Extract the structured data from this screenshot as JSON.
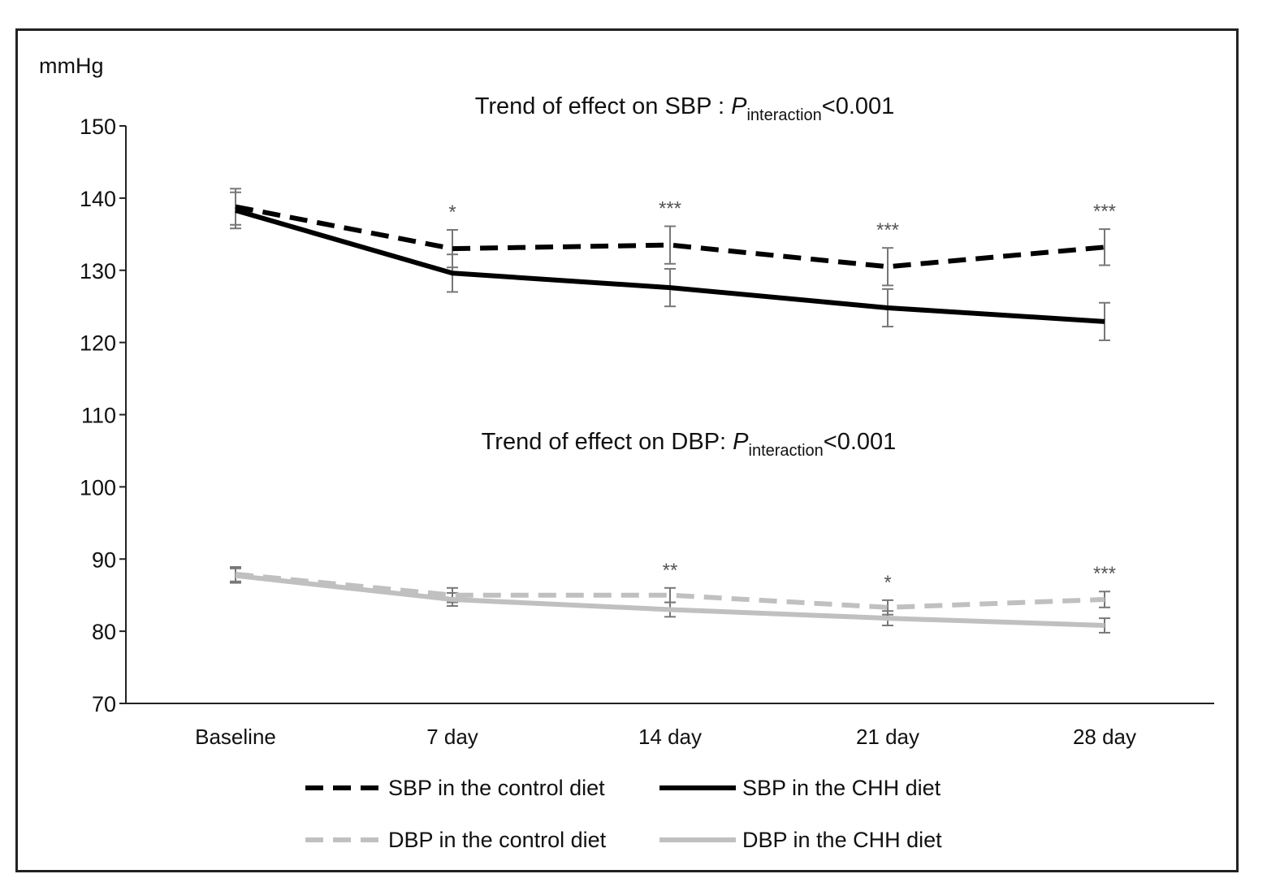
{
  "chart_data": {
    "type": "line",
    "unit_label": "mmHg",
    "categories": [
      "Baseline",
      "7 day",
      "14 day",
      "21 day",
      "28 day"
    ],
    "ylim": [
      70,
      150
    ],
    "yticks": [
      70,
      80,
      90,
      100,
      110,
      120,
      130,
      140,
      150
    ],
    "grid": false,
    "legend_placement": "bottom",
    "titles": [
      {
        "prefix": "Trend of effect on SBP : ",
        "italic": "P",
        "subscript": "interaction",
        "suffix": "<0.001"
      },
      {
        "prefix": "Trend of effect on DBP: ",
        "italic": "P",
        "subscript": "interaction",
        "suffix": "<0.001"
      }
    ],
    "series": [
      {
        "name": "SBP in the control diet",
        "color": "#000000",
        "dash": true,
        "values": [
          138.8,
          133.0,
          133.5,
          130.5,
          133.2
        ],
        "error": [
          2.5,
          2.6,
          2.6,
          2.6,
          2.5
        ]
      },
      {
        "name": "SBP in the CHH diet",
        "color": "#000000",
        "dash": false,
        "values": [
          138.3,
          129.6,
          127.6,
          124.8,
          122.9
        ],
        "error": [
          2.5,
          2.6,
          2.6,
          2.6,
          2.6
        ]
      },
      {
        "name": "DBP in the control diet",
        "color": "#c0c0c0",
        "dash": true,
        "values": [
          87.9,
          85.0,
          85.0,
          83.3,
          84.4
        ],
        "error": [
          1.0,
          1.0,
          1.0,
          1.0,
          1.1
        ]
      },
      {
        "name": "DBP in the CHH diet",
        "color": "#c0c0c0",
        "dash": false,
        "values": [
          87.7,
          84.4,
          83.0,
          81.8,
          80.8
        ],
        "error": [
          1.0,
          0.9,
          1.0,
          1.0,
          1.0
        ]
      }
    ],
    "significance": [
      {
        "category": "7 day",
        "group": "SBP",
        "label": "*"
      },
      {
        "category": "14 day",
        "group": "SBP",
        "label": "***"
      },
      {
        "category": "21 day",
        "group": "SBP",
        "label": "***"
      },
      {
        "category": "28 day",
        "group": "SBP",
        "label": "***"
      },
      {
        "category": "14 day",
        "group": "DBP",
        "label": "**"
      },
      {
        "category": "21 day",
        "group": "DBP",
        "label": "*"
      },
      {
        "category": "28 day",
        "group": "DBP",
        "label": "***"
      }
    ]
  }
}
